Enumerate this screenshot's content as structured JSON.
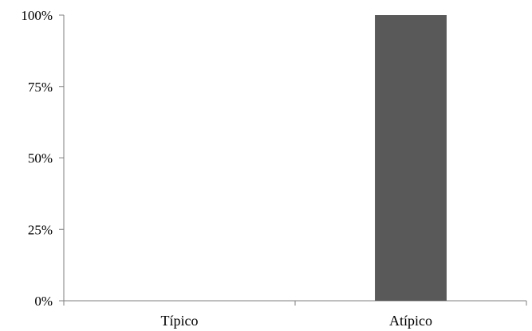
{
  "chart_data": {
    "type": "bar",
    "categories": [
      "Típico",
      "Atípico"
    ],
    "values": [
      0,
      100
    ],
    "ylim": [
      0,
      100
    ],
    "yticks": [
      0,
      25,
      50,
      75,
      100
    ],
    "ytick_labels": [
      "0%",
      "25%",
      "50%",
      "75%",
      "100%"
    ],
    "title": "",
    "xlabel": "",
    "ylabel": "",
    "grid": false,
    "bar_color": "#595959"
  }
}
